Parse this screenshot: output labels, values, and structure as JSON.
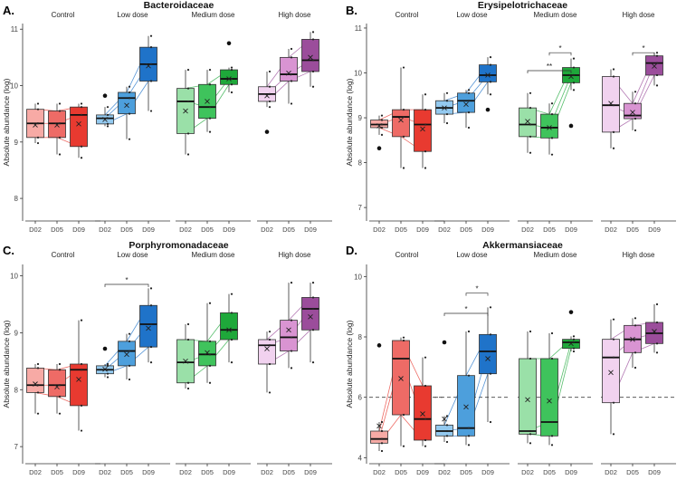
{
  "figure": {
    "background": "#ffffff",
    "ylabel": "Absolute abundance (log)",
    "groups": [
      "Control",
      "Low dose",
      "Medium dose",
      "High dose"
    ],
    "days": [
      "D02",
      "D05",
      "D09"
    ],
    "colors": {
      "Control": [
        "#f7aaa5",
        "#ee6b66",
        "#e83a30"
      ],
      "Low dose": [
        "#93c9ef",
        "#4d9fdc",
        "#1f73c9"
      ],
      "Medium dose": [
        "#9ae0a8",
        "#3fc35c",
        "#1ea83a"
      ],
      "High dose": [
        "#f1d2ef",
        "#d994d2",
        "#9b4d9b"
      ]
    }
  },
  "chart_data": [
    {
      "type": "box",
      "panel": "A.",
      "title": "Bacteroidaceae",
      "ylabel": "Absolute abundance (log)",
      "ylim": [
        7.6,
        11.1
      ],
      "yticks": [
        8,
        9,
        10,
        11
      ],
      "series": [
        {
          "group": "Control",
          "boxes": [
            {
              "day": "D02",
              "q1": 9.08,
              "median": 9.33,
              "q3": 9.58,
              "whisker_low": 8.98,
              "whisker_high": 9.68,
              "mean": 9.3
            },
            {
              "day": "D05",
              "q1": 9.08,
              "median": 9.33,
              "q3": 9.55,
              "whisker_low": 8.78,
              "whisker_high": 9.68,
              "mean": 9.3
            },
            {
              "day": "D09",
              "q1": 8.92,
              "median": 9.48,
              "q3": 9.62,
              "whisker_low": 8.72,
              "whisker_high": 9.68,
              "mean": 9.32
            }
          ]
        },
        {
          "group": "Low dose",
          "boxes": [
            {
              "day": "D02",
              "q1": 9.32,
              "median": 9.42,
              "q3": 9.48,
              "whisker_low": 9.28,
              "whisker_high": 9.62,
              "mean": 9.4,
              "outliers": [
                9.82
              ]
            },
            {
              "day": "D05",
              "q1": 9.5,
              "median": 9.78,
              "q3": 9.88,
              "whisker_low": 9.05,
              "whisker_high": 9.98,
              "mean": 9.65
            },
            {
              "day": "D09",
              "q1": 10.08,
              "median": 10.38,
              "q3": 10.68,
              "whisker_low": 9.55,
              "whisker_high": 10.88,
              "mean": 10.35
            }
          ]
        },
        {
          "group": "Medium dose",
          "boxes": [
            {
              "day": "D02",
              "q1": 9.15,
              "median": 9.72,
              "q3": 9.95,
              "whisker_low": 8.78,
              "whisker_high": 10.28,
              "mean": 9.55
            },
            {
              "day": "D05",
              "q1": 9.42,
              "median": 9.62,
              "q3": 10.02,
              "whisker_low": 9.18,
              "whisker_high": 10.28,
              "mean": 9.72
            },
            {
              "day": "D09",
              "q1": 10.02,
              "median": 10.12,
              "q3": 10.28,
              "whisker_low": 9.88,
              "whisker_high": 10.32,
              "mean": 10.12,
              "outliers": [
                10.75
              ]
            }
          ]
        },
        {
          "group": "High dose",
          "boxes": [
            {
              "day": "D02",
              "q1": 9.72,
              "median": 9.85,
              "q3": 9.98,
              "whisker_low": 9.62,
              "whisker_high": 10.25,
              "mean": 9.82,
              "outliers": [
                9.18
              ]
            },
            {
              "day": "D05",
              "q1": 10.08,
              "median": 10.2,
              "q3": 10.5,
              "whisker_low": 9.68,
              "whisker_high": 10.65,
              "mean": 10.22
            },
            {
              "day": "D09",
              "q1": 10.25,
              "median": 10.45,
              "q3": 10.82,
              "whisker_low": 9.98,
              "whisker_high": 10.95,
              "mean": 10.5
            }
          ]
        }
      ],
      "significance": []
    },
    {
      "type": "box",
      "panel": "B.",
      "title": "Erysipelotrichaceae",
      "ylabel": "Absolute abundance (log)",
      "ylim": [
        6.7,
        11.1
      ],
      "yticks": [
        7,
        8,
        9,
        10,
        11
      ],
      "series": [
        {
          "group": "Control",
          "boxes": [
            {
              "day": "D02",
              "q1": 8.78,
              "median": 8.85,
              "q3": 8.95,
              "whisker_low": 8.62,
              "whisker_high": 9.05,
              "mean": 8.82,
              "outliers": [
                8.32
              ]
            },
            {
              "day": "D05",
              "q1": 8.58,
              "median": 9.02,
              "q3": 9.18,
              "whisker_low": 7.88,
              "whisker_high": 10.12,
              "mean": 8.95
            },
            {
              "day": "D09",
              "q1": 8.25,
              "median": 8.85,
              "q3": 9.18,
              "whisker_low": 7.88,
              "whisker_high": 9.52,
              "mean": 8.75
            }
          ]
        },
        {
          "group": "Low dose",
          "boxes": [
            {
              "day": "D02",
              "q1": 9.08,
              "median": 9.22,
              "q3": 9.38,
              "whisker_low": 8.88,
              "whisker_high": 9.55,
              "mean": 9.22
            },
            {
              "day": "D05",
              "q1": 9.12,
              "median": 9.38,
              "q3": 9.55,
              "whisker_low": 8.78,
              "whisker_high": 9.62,
              "mean": 9.3
            },
            {
              "day": "D09",
              "q1": 9.8,
              "median": 9.95,
              "q3": 10.18,
              "whisker_low": 9.52,
              "whisker_high": 10.35,
              "mean": 9.95,
              "outliers": [
                9.18
              ]
            }
          ]
        },
        {
          "group": "Medium dose",
          "boxes": [
            {
              "day": "D02",
              "q1": 8.58,
              "median": 8.85,
              "q3": 9.22,
              "whisker_low": 8.22,
              "whisker_high": 9.55,
              "mean": 8.92
            },
            {
              "day": "D05",
              "q1": 8.55,
              "median": 8.78,
              "q3": 9.08,
              "whisker_low": 8.18,
              "whisker_high": 9.32,
              "mean": 8.78
            },
            {
              "day": "D09",
              "q1": 9.78,
              "median": 9.95,
              "q3": 10.12,
              "whisker_low": 9.62,
              "whisker_high": 10.32,
              "mean": 9.92,
              "outliers": [
                8.82
              ]
            }
          ]
        },
        {
          "group": "High dose",
          "boxes": [
            {
              "day": "D02",
              "q1": 8.68,
              "median": 9.28,
              "q3": 9.92,
              "whisker_low": 8.32,
              "whisker_high": 10.08,
              "mean": 9.32
            },
            {
              "day": "D05",
              "q1": 8.98,
              "median": 9.05,
              "q3": 9.32,
              "whisker_low": 8.72,
              "whisker_high": 9.58,
              "mean": 9.12
            },
            {
              "day": "D09",
              "q1": 9.95,
              "median": 10.22,
              "q3": 10.38,
              "whisker_low": 9.72,
              "whisker_high": 10.45,
              "mean": 10.15
            }
          ]
        }
      ],
      "significance": [
        {
          "group": "Medium dose",
          "from": "D05",
          "to": "D09",
          "label": "*",
          "y": 10.45
        },
        {
          "group": "Medium dose",
          "from": "D02",
          "to": "D09",
          "label": "**",
          "y": 10.05
        },
        {
          "group": "High dose",
          "from": "D05",
          "to": "D09",
          "label": "*",
          "y": 10.45
        }
      ]
    },
    {
      "type": "box",
      "panel": "C.",
      "title": "Porphyromonadaceae",
      "ylabel": "Absolute abundance (log)",
      "ylim": [
        6.7,
        10.2
      ],
      "yticks": [
        7,
        8,
        9,
        10
      ],
      "series": [
        {
          "group": "Control",
          "boxes": [
            {
              "day": "D02",
              "q1": 7.95,
              "median": 8.08,
              "q3": 8.38,
              "whisker_low": 7.58,
              "whisker_high": 8.45,
              "mean": 8.1
            },
            {
              "day": "D05",
              "q1": 7.88,
              "median": 8.08,
              "q3": 8.35,
              "whisker_low": 7.58,
              "whisker_high": 8.45,
              "mean": 8.05
            },
            {
              "day": "D09",
              "q1": 7.72,
              "median": 8.35,
              "q3": 8.45,
              "whisker_low": 7.28,
              "whisker_high": 9.22,
              "mean": 8.18
            }
          ]
        },
        {
          "group": "Low dose",
          "boxes": [
            {
              "day": "D02",
              "q1": 8.28,
              "median": 8.35,
              "q3": 8.42,
              "whisker_low": 8.22,
              "whisker_high": 8.45,
              "mean": 8.36,
              "outliers": [
                8.72
              ]
            },
            {
              "day": "D05",
              "q1": 8.42,
              "median": 8.68,
              "q3": 8.85,
              "whisker_low": 8.18,
              "whisker_high": 8.98,
              "mean": 8.62
            },
            {
              "day": "D09",
              "q1": 8.75,
              "median": 9.15,
              "q3": 9.48,
              "whisker_low": 8.48,
              "whisker_high": 9.78,
              "mean": 9.08
            }
          ]
        },
        {
          "group": "Medium dose",
          "boxes": [
            {
              "day": "D02",
              "q1": 8.12,
              "median": 8.48,
              "q3": 8.88,
              "whisker_low": 8.02,
              "whisker_high": 9.15,
              "mean": 8.5
            },
            {
              "day": "D05",
              "q1": 8.42,
              "median": 8.62,
              "q3": 8.85,
              "whisker_low": 8.12,
              "whisker_high": 9.52,
              "mean": 8.65
            },
            {
              "day": "D09",
              "q1": 8.88,
              "median": 9.05,
              "q3": 9.35,
              "whisker_low": 8.48,
              "whisker_high": 9.68,
              "mean": 9.05
            }
          ]
        },
        {
          "group": "High dose",
          "boxes": [
            {
              "day": "D02",
              "q1": 8.45,
              "median": 8.78,
              "q3": 8.88,
              "whisker_low": 7.95,
              "whisker_high": 9.02,
              "mean": 8.72
            },
            {
              "day": "D05",
              "q1": 8.68,
              "median": 8.92,
              "q3": 9.22,
              "whisker_low": 8.38,
              "whisker_high": 9.88,
              "mean": 9.05
            },
            {
              "day": "D09",
              "q1": 9.05,
              "median": 9.42,
              "q3": 9.62,
              "whisker_low": 8.48,
              "whisker_high": 9.88,
              "mean": 9.28
            }
          ]
        }
      ],
      "significance": [
        {
          "group": "Low dose",
          "from": "D02",
          "to": "D09",
          "label": "*",
          "y": 9.85
        }
      ]
    },
    {
      "type": "box",
      "panel": "D.",
      "title": "Akkermansiaceae",
      "ylabel": "Absolute abundance (log)",
      "ylim": [
        3.8,
        10.4
      ],
      "yticks": [
        4,
        6,
        8,
        10
      ],
      "reference_line": 6,
      "series": [
        {
          "group": "Control",
          "boxes": [
            {
              "day": "D02",
              "q1": 4.48,
              "median": 4.62,
              "q3": 4.88,
              "whisker_low": 4.22,
              "whisker_high": 5.18,
              "mean": 5.05,
              "outliers": [
                7.72
              ]
            },
            {
              "day": "D05",
              "q1": 5.42,
              "median": 7.28,
              "q3": 7.88,
              "whisker_low": 4.38,
              "whisker_high": 7.98,
              "mean": 6.62
            },
            {
              "day": "D09",
              "q1": 4.58,
              "median": 5.28,
              "q3": 6.38,
              "whisker_low": 4.38,
              "whisker_high": 7.32,
              "mean": 5.45
            }
          ]
        },
        {
          "group": "Low dose",
          "boxes": [
            {
              "day": "D02",
              "q1": 4.72,
              "median": 4.88,
              "q3": 5.08,
              "whisker_low": 4.52,
              "whisker_high": 5.38,
              "mean": 5.28,
              "outliers": [
                7.82
              ]
            },
            {
              "day": "D05",
              "q1": 4.72,
              "median": 4.98,
              "q3": 6.72,
              "whisker_low": 4.42,
              "whisker_high": 8.18,
              "mean": 5.68
            },
            {
              "day": "D09",
              "q1": 6.78,
              "median": 7.52,
              "q3": 8.08,
              "whisker_low": 5.18,
              "whisker_high": 8.98,
              "mean": 7.28
            }
          ]
        },
        {
          "group": "Medium dose",
          "boxes": [
            {
              "day": "D02",
              "q1": 4.78,
              "median": 4.88,
              "q3": 7.28,
              "whisker_low": 4.48,
              "whisker_high": 8.18,
              "mean": 5.92
            },
            {
              "day": "D05",
              "q1": 4.72,
              "median": 5.18,
              "q3": 7.28,
              "whisker_low": 4.42,
              "whisker_high": 8.12,
              "mean": 5.88
            },
            {
              "day": "D09",
              "q1": 7.62,
              "median": 7.82,
              "q3": 7.92,
              "whisker_low": 7.52,
              "whisker_high": 8.02,
              "mean": 7.78,
              "outliers": [
                8.82
              ]
            }
          ]
        },
        {
          "group": "High dose",
          "boxes": [
            {
              "day": "D02",
              "q1": 5.82,
              "median": 7.32,
              "q3": 7.92,
              "whisker_low": 4.78,
              "whisker_high": 8.58,
              "mean": 6.82
            },
            {
              "day": "D05",
              "q1": 7.48,
              "median": 7.92,
              "q3": 8.38,
              "whisker_low": 6.98,
              "whisker_high": 8.62,
              "mean": 7.92
            },
            {
              "day": "D09",
              "q1": 7.78,
              "median": 8.12,
              "q3": 8.48,
              "whisker_low": 7.48,
              "whisker_high": 9.08,
              "mean": 8.18
            }
          ]
        }
      ],
      "significance": [
        {
          "group": "Low dose",
          "from": "D05",
          "to": "D09",
          "label": "*",
          "y": 9.45
        },
        {
          "group": "Low dose",
          "from": "D02",
          "to": "D09",
          "label": "*",
          "y": 8.78
        }
      ]
    }
  ]
}
